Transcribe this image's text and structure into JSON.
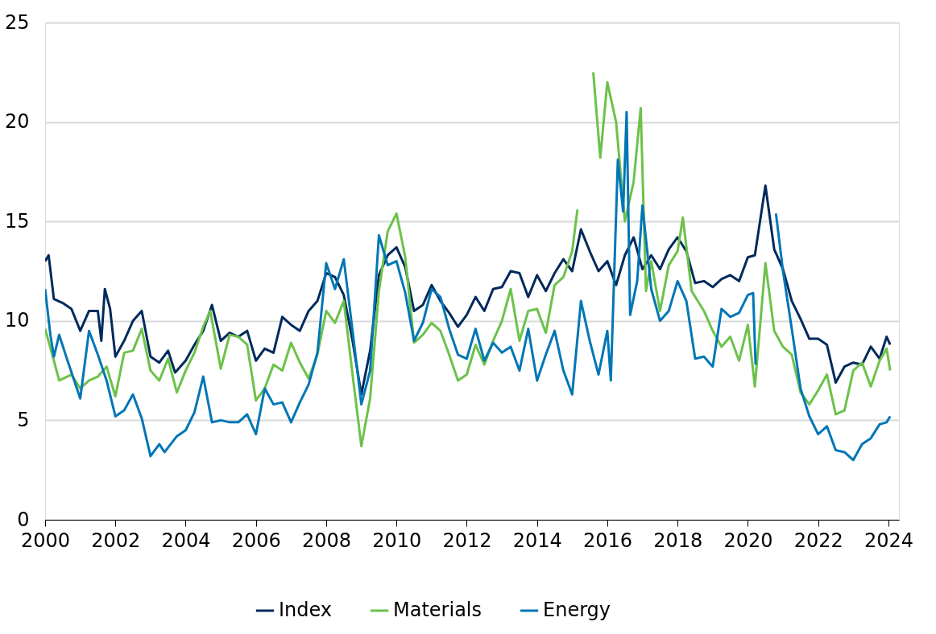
{
  "chart_data": {
    "type": "line",
    "xlim": [
      2000,
      2024.3
    ],
    "xticks": [
      2000,
      2002,
      2004,
      2006,
      2008,
      2010,
      2012,
      2014,
      2016,
      2018,
      2020,
      2022,
      2024
    ],
    "ylim": [
      0,
      25
    ],
    "yticks": [
      0,
      5,
      10,
      15,
      20,
      25
    ],
    "grid": "y",
    "legend": "bottom",
    "line_style": "solid",
    "marker": "none",
    "series": [
      {
        "name": "Index",
        "color": "#002a5c",
        "x": [
          2000.0,
          2000.1,
          2000.25,
          2000.5,
          2000.75,
          2001.0,
          2001.25,
          2001.5,
          2001.6,
          2001.7,
          2001.85,
          2002.0,
          2002.25,
          2002.5,
          2002.75,
          2003.0,
          2003.25,
          2003.5,
          2003.7,
          2004.0,
          2004.25,
          2004.5,
          2004.75,
          2005.0,
          2005.25,
          2005.5,
          2005.75,
          2006.0,
          2006.25,
          2006.5,
          2006.75,
          2007.0,
          2007.25,
          2007.5,
          2007.75,
          2008.0,
          2008.25,
          2008.5,
          2008.75,
          2009.0,
          2009.25,
          2009.5,
          2009.75,
          2010.0,
          2010.25,
          2010.5,
          2010.75,
          2011.0,
          2011.25,
          2011.5,
          2011.75,
          2012.0,
          2012.25,
          2012.5,
          2012.75,
          2013.0,
          2013.25,
          2013.5,
          2013.75,
          2014.0,
          2014.25,
          2014.5,
          2014.75,
          2015.0,
          2015.25,
          2015.5,
          2015.75,
          2016.0,
          2016.25,
          2016.5,
          2016.75,
          2017.0,
          2017.25,
          2017.5,
          2017.75,
          2018.0,
          2018.25,
          2018.5,
          2018.75,
          2019.0,
          2019.25,
          2019.5,
          2019.75,
          2020.0,
          2020.2,
          2020.5,
          2020.75,
          2021.0,
          2021.25,
          2021.5,
          2021.75,
          2022.0,
          2022.25,
          2022.5,
          2022.75,
          2023.0,
          2023.25,
          2023.5,
          2023.75,
          2023.95,
          2024.05
        ],
        "values": [
          13.0,
          13.3,
          11.1,
          10.9,
          10.6,
          9.5,
          10.5,
          10.5,
          9.0,
          11.6,
          10.6,
          8.2,
          9.0,
          10.0,
          10.5,
          8.2,
          7.9,
          8.5,
          7.4,
          8.0,
          8.8,
          9.5,
          10.8,
          9.0,
          9.4,
          9.2,
          9.5,
          8.0,
          8.6,
          8.4,
          10.2,
          9.8,
          9.5,
          10.5,
          11.0,
          12.4,
          12.2,
          11.3,
          9.0,
          6.3,
          8.5,
          12.3,
          13.3,
          13.7,
          12.7,
          10.5,
          10.8,
          11.8,
          11.0,
          10.4,
          9.7,
          10.3,
          11.2,
          10.5,
          11.6,
          11.7,
          12.5,
          12.4,
          11.2,
          12.3,
          11.5,
          12.4,
          13.1,
          12.5,
          14.6,
          13.5,
          12.5,
          13.0,
          11.8,
          13.3,
          14.2,
          12.6,
          13.3,
          12.6,
          13.6,
          14.2,
          13.5,
          11.9,
          12.0,
          11.7,
          12.1,
          12.3,
          12.0,
          13.2,
          13.3,
          16.8,
          13.6,
          12.6,
          11.0,
          10.1,
          9.1,
          9.1,
          8.8,
          6.9,
          7.7,
          7.9,
          7.8,
          8.7,
          8.1,
          9.2,
          8.8
        ]
      },
      {
        "name": "Materials",
        "color": "#6cc24a",
        "x": [
          2000.0,
          2000.25,
          2000.4,
          2000.75,
          2001.0,
          2001.25,
          2001.5,
          2001.75,
          2002.0,
          2002.25,
          2002.5,
          2002.75,
          2003.0,
          2003.25,
          2003.5,
          2003.75,
          2004.0,
          2004.25,
          2004.5,
          2004.7,
          2005.0,
          2005.25,
          2005.5,
          2005.75,
          2006.0,
          2006.25,
          2006.5,
          2006.75,
          2007.0,
          2007.25,
          2007.5,
          2007.75,
          2008.0,
          2008.25,
          2008.5,
          2008.75,
          2009.0,
          2009.25,
          2009.5,
          2009.75,
          2010.0,
          2010.25,
          2010.5,
          2010.75,
          2011.0,
          2011.25,
          2011.5,
          2011.75,
          2012.0,
          2012.25,
          2012.5,
          2012.75,
          2013.0,
          2013.25,
          2013.5,
          2013.75,
          2014.0,
          2014.25,
          2014.5,
          2014.75,
          2015.0,
          2015.15,
          2015.3,
          2015.5,
          2015.6,
          2015.8,
          2016.0,
          2016.25,
          2016.5,
          2016.75,
          2016.95,
          2017.1,
          2017.25,
          2017.5,
          2017.75,
          2018.0,
          2018.15,
          2018.4,
          2018.75,
          2019.0,
          2019.25,
          2019.5,
          2019.75,
          2020.0,
          2020.2,
          2020.5,
          2020.75,
          2021.0,
          2021.25,
          2021.5,
          2021.75,
          2022.0,
          2022.25,
          2022.5,
          2022.75,
          2023.0,
          2023.25,
          2023.5,
          2023.75,
          2023.95,
          2024.05
        ],
        "values": [
          9.6,
          8.0,
          7.0,
          7.3,
          6.6,
          7.0,
          7.2,
          7.7,
          6.2,
          8.4,
          8.5,
          9.6,
          7.5,
          7.0,
          8.1,
          6.4,
          7.5,
          8.4,
          9.7,
          10.5,
          7.6,
          9.3,
          9.2,
          8.8,
          6.0,
          6.6,
          7.8,
          7.5,
          8.9,
          7.9,
          7.1,
          8.3,
          10.5,
          9.9,
          11.0,
          7.3,
          3.7,
          6.1,
          11.5,
          14.5,
          15.4,
          13.2,
          8.9,
          9.3,
          9.9,
          9.5,
          8.3,
          7.0,
          7.3,
          8.8,
          7.8,
          9.0,
          10.0,
          11.6,
          9.0,
          10.5,
          10.6,
          9.4,
          11.8,
          12.2,
          13.5,
          15.6,
          null,
          null,
          22.5,
          18.2,
          22.0,
          20.0,
          15.0,
          17.0,
          20.7,
          11.5,
          13.0,
          10.5,
          12.8,
          13.5,
          15.2,
          11.5,
          10.5,
          9.5,
          8.7,
          9.2,
          8.0,
          9.8,
          6.7,
          12.9,
          9.5,
          8.7,
          8.3,
          6.4,
          5.8,
          6.5,
          7.3,
          5.3,
          5.5,
          7.5,
          7.9,
          6.7,
          8.0,
          8.6,
          7.5
        ]
      },
      {
        "name": "Energy",
        "color": "#0076b6",
        "x": [
          2000.0,
          2000.15,
          2000.25,
          2000.4,
          2000.6,
          2001.0,
          2001.25,
          2001.5,
          2001.75,
          2002.0,
          2002.25,
          2002.5,
          2002.75,
          2003.0,
          2003.25,
          2003.4,
          2003.75,
          2004.0,
          2004.25,
          2004.5,
          2004.75,
          2005.0,
          2005.25,
          2005.5,
          2005.75,
          2006.0,
          2006.25,
          2006.5,
          2006.75,
          2007.0,
          2007.25,
          2007.5,
          2007.75,
          2008.0,
          2008.25,
          2008.5,
          2008.75,
          2009.0,
          2009.25,
          2009.5,
          2009.75,
          2010.0,
          2010.25,
          2010.5,
          2010.75,
          2011.0,
          2011.25,
          2011.5,
          2011.75,
          2012.0,
          2012.25,
          2012.5,
          2012.75,
          2013.0,
          2013.25,
          2013.5,
          2013.75,
          2014.0,
          2014.25,
          2014.5,
          2014.75,
          2015.0,
          2015.25,
          2015.5,
          2015.75,
          2016.0,
          2016.1,
          2016.3,
          2016.45,
          2016.55,
          2016.65,
          2016.85,
          2017.0,
          2017.25,
          2017.5,
          2017.75,
          2018.0,
          2018.25,
          2018.5,
          2018.75,
          2019.0,
          2019.25,
          2019.5,
          2019.75,
          2020.0,
          2020.15,
          2020.22,
          2020.3,
          2020.7,
          2020.8,
          2021.0,
          2021.25,
          2021.5,
          2021.75,
          2022.0,
          2022.25,
          2022.5,
          2022.75,
          2023.0,
          2023.25,
          2023.5,
          2023.75,
          2023.95,
          2024.05
        ],
        "values": [
          11.6,
          9.3,
          8.2,
          9.3,
          8.2,
          6.1,
          9.5,
          8.3,
          7.0,
          5.2,
          5.5,
          6.3,
          5.1,
          3.2,
          3.8,
          3.4,
          4.2,
          4.5,
          5.4,
          7.2,
          4.9,
          5.0,
          4.9,
          4.9,
          5.3,
          4.3,
          6.6,
          5.8,
          5.9,
          4.9,
          5.9,
          6.8,
          8.4,
          12.9,
          11.6,
          13.1,
          9.5,
          5.8,
          7.5,
          14.3,
          12.8,
          13.0,
          11.4,
          9.0,
          9.9,
          11.6,
          11.2,
          9.6,
          8.3,
          8.1,
          9.6,
          8.0,
          8.9,
          8.4,
          8.7,
          7.5,
          9.6,
          7.0,
          8.3,
          9.5,
          7.5,
          6.3,
          11.0,
          9.0,
          7.3,
          9.5,
          7.0,
          18.1,
          15.5,
          20.5,
          10.3,
          12.0,
          15.8,
          11.6,
          10.0,
          10.5,
          12.0,
          11.0,
          8.1,
          8.2,
          7.7,
          10.6,
          10.2,
          10.4,
          11.3,
          11.4,
          7.8,
          null,
          null,
          15.4,
          12.5,
          9.6,
          6.6,
          5.2,
          4.3,
          4.7,
          3.5,
          3.4,
          3.0,
          3.8,
          4.1,
          4.8,
          4.9,
          5.2
        ]
      }
    ]
  }
}
